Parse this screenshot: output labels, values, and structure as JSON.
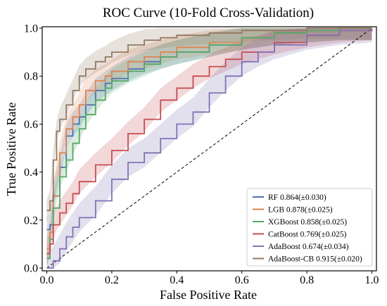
{
  "chart_data": {
    "type": "line",
    "title": "ROC Curve (10-Fold Cross-Validation)",
    "xlabel": "False Positive Rate",
    "ylabel": "True Positive Rate",
    "xlim": [
      0,
      1
    ],
    "ylim": [
      0,
      1
    ],
    "xticks": [
      "0.0",
      "0.2",
      "0.4",
      "0.6",
      "0.8",
      "1.0"
    ],
    "yticks": [
      "0.0",
      "0.2",
      "0.4",
      "0.6",
      "0.8",
      "1.0"
    ],
    "grid": false,
    "legend_position": "lower-right",
    "chance_line": true,
    "series": [
      {
        "name": "RF",
        "auc_label": "0.864(±0.030)",
        "color": "#4c72b0",
        "x": [
          0,
          0.01,
          0.02,
          0.04,
          0.06,
          0.08,
          0.1,
          0.12,
          0.15,
          0.18,
          0.2,
          0.25,
          0.3,
          0.35,
          0.4,
          0.5,
          0.6,
          0.7,
          0.8,
          0.9,
          1.0
        ],
        "y": [
          0.16,
          0.18,
          0.3,
          0.42,
          0.55,
          0.6,
          0.63,
          0.68,
          0.74,
          0.77,
          0.79,
          0.83,
          0.86,
          0.88,
          0.9,
          0.93,
          0.96,
          0.98,
          0.99,
          1.0,
          1.0
        ],
        "band": 0.05
      },
      {
        "name": "LGB",
        "auc_label": "0.878(±0.025)",
        "color": "#dd8452",
        "x": [
          0,
          0.01,
          0.02,
          0.04,
          0.06,
          0.08,
          0.1,
          0.12,
          0.15,
          0.18,
          0.2,
          0.25,
          0.3,
          0.35,
          0.4,
          0.5,
          0.6,
          0.7,
          0.8,
          0.9,
          1.0
        ],
        "y": [
          0.08,
          0.15,
          0.3,
          0.48,
          0.58,
          0.63,
          0.68,
          0.74,
          0.78,
          0.8,
          0.82,
          0.86,
          0.88,
          0.9,
          0.92,
          0.94,
          0.96,
          0.98,
          0.99,
          1.0,
          1.0
        ],
        "band": 0.05
      },
      {
        "name": "XGBoost",
        "auc_label": "0.858(±0.025)",
        "color": "#55a868",
        "x": [
          0,
          0.01,
          0.02,
          0.04,
          0.06,
          0.08,
          0.1,
          0.12,
          0.15,
          0.18,
          0.2,
          0.25,
          0.3,
          0.35,
          0.4,
          0.5,
          0.6,
          0.7,
          0.8,
          0.9,
          1.0
        ],
        "y": [
          0.04,
          0.12,
          0.25,
          0.38,
          0.45,
          0.52,
          0.58,
          0.64,
          0.7,
          0.75,
          0.78,
          0.82,
          0.85,
          0.88,
          0.9,
          0.93,
          0.96,
          0.98,
          0.99,
          1.0,
          1.0
        ],
        "band": 0.05
      },
      {
        "name": "CatBoost",
        "auc_label": "0.769(±0.025)",
        "color": "#c44e52",
        "x": [
          0,
          0.01,
          0.02,
          0.04,
          0.06,
          0.08,
          0.1,
          0.15,
          0.2,
          0.25,
          0.3,
          0.35,
          0.4,
          0.45,
          0.5,
          0.55,
          0.6,
          0.7,
          0.8,
          0.9,
          1.0
        ],
        "y": [
          0.06,
          0.1,
          0.18,
          0.23,
          0.27,
          0.31,
          0.36,
          0.43,
          0.49,
          0.56,
          0.62,
          0.7,
          0.75,
          0.8,
          0.84,
          0.87,
          0.9,
          0.94,
          0.97,
          0.99,
          1.0
        ],
        "band": 0.05
      },
      {
        "name": "AdaBoost",
        "auc_label": "0.674(±0.034)",
        "color": "#8172b3",
        "x": [
          0,
          0.02,
          0.04,
          0.06,
          0.08,
          0.1,
          0.15,
          0.2,
          0.25,
          0.3,
          0.35,
          0.4,
          0.45,
          0.5,
          0.55,
          0.6,
          0.65,
          0.7,
          0.8,
          0.9,
          1.0
        ],
        "y": [
          0.0,
          0.03,
          0.08,
          0.13,
          0.17,
          0.21,
          0.28,
          0.37,
          0.44,
          0.48,
          0.54,
          0.6,
          0.65,
          0.73,
          0.8,
          0.86,
          0.9,
          0.93,
          0.97,
          0.99,
          1.0
        ],
        "band": 0.06
      },
      {
        "name": "AdaBoost-CB",
        "auc_label": "0.915(±0.020)",
        "color": "#937860",
        "x": [
          0,
          0.01,
          0.02,
          0.03,
          0.04,
          0.06,
          0.08,
          0.1,
          0.12,
          0.15,
          0.18,
          0.2,
          0.25,
          0.3,
          0.35,
          0.4,
          0.5,
          0.6,
          0.8,
          0.9,
          1.0
        ],
        "y": [
          0.24,
          0.28,
          0.45,
          0.57,
          0.62,
          0.68,
          0.74,
          0.8,
          0.83,
          0.86,
          0.88,
          0.9,
          0.93,
          0.95,
          0.96,
          0.97,
          0.98,
          0.99,
          1.0,
          1.0,
          1.0
        ],
        "band": 0.045
      }
    ]
  }
}
